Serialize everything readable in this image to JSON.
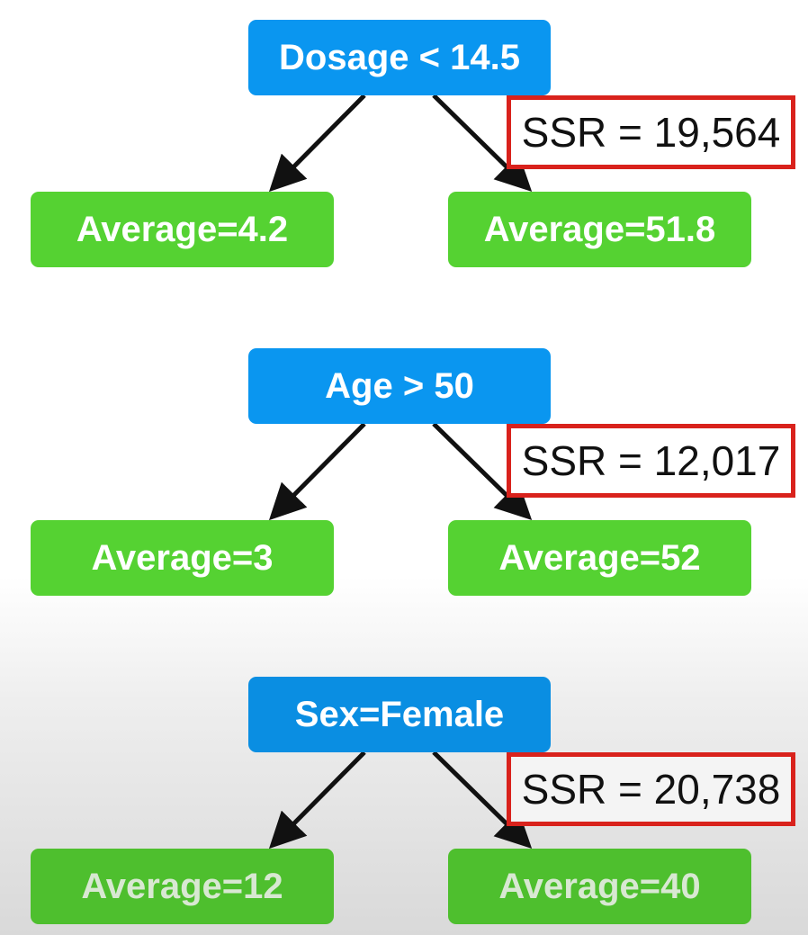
{
  "colors": {
    "split_node": "#0a96f0",
    "leaf_node": "#55d232",
    "ssr_border": "#d9221c",
    "arrow": "#111111"
  },
  "stumps": [
    {
      "root_label": "Dosage < 14.5",
      "left_leaf": "Average=4.2",
      "right_leaf": "Average=51.8",
      "ssr": "SSR = 19,564"
    },
    {
      "root_label": "Age > 50",
      "left_leaf": "Average=3",
      "right_leaf": "Average=52",
      "ssr": "SSR = 12,017"
    },
    {
      "root_label": "Sex=Female",
      "left_leaf": "Average=12",
      "right_leaf": "Average=40",
      "ssr": "SSR = 20,738"
    }
  ]
}
